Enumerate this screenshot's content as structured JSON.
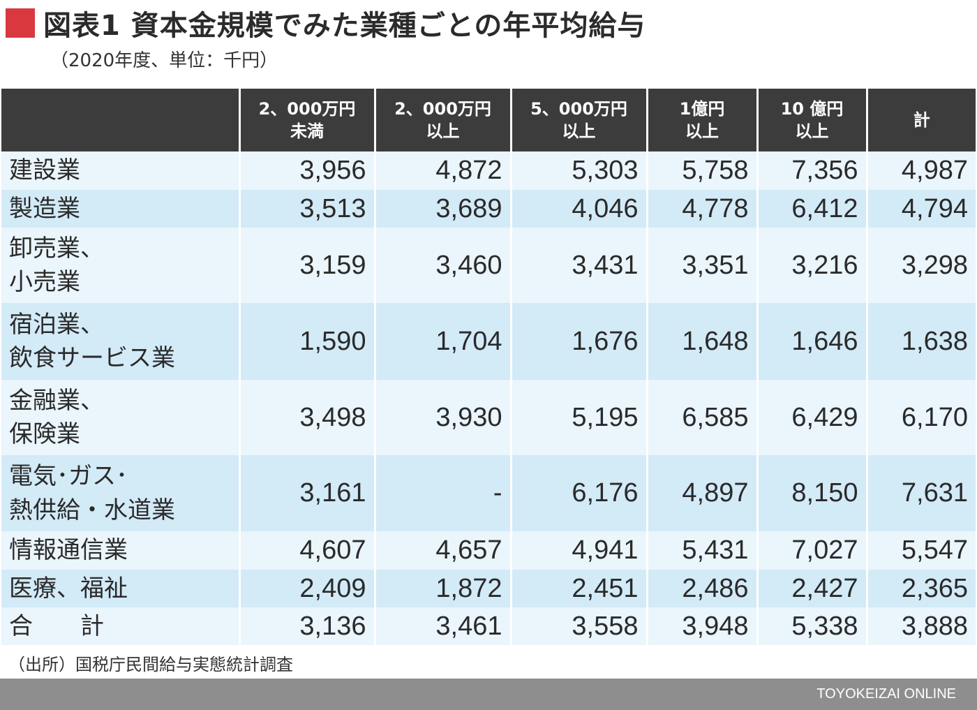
{
  "title": "図表1 資本金規模でみた業種ごとの年平均給与",
  "subtitle": "（2020年度、単位：千円）",
  "colors": {
    "title_marker": "#d9383f",
    "header_bg": "#3c3c3c",
    "row_light": "#eaf5fc",
    "row_dark": "#d3eaf7",
    "footer_bg": "#8e8e8e"
  },
  "chart_data": {
    "type": "table",
    "title": "図表1 資本金規模でみた業種ごとの年平均給与",
    "subtitle": "（2020年度、単位：千円）",
    "columns": [
      {
        "line1": "",
        "line2": ""
      },
      {
        "line1": "2、000万円",
        "line2": "未満"
      },
      {
        "line1": "2、000万円",
        "line2": "以上"
      },
      {
        "line1": "5、000万円",
        "line2": "以上"
      },
      {
        "line1": "1億円",
        "line2": "以上"
      },
      {
        "line1": "10 億円",
        "line2": "以上"
      },
      {
        "line1": "計",
        "line2": ""
      }
    ],
    "rows": [
      {
        "label": [
          "建設業"
        ],
        "values": [
          "3,956",
          "4,872",
          "5,303",
          "5,758",
          "7,356",
          "4,987"
        ]
      },
      {
        "label": [
          "製造業"
        ],
        "values": [
          "3,513",
          "3,689",
          "4,046",
          "4,778",
          "6,412",
          "4,794"
        ]
      },
      {
        "label": [
          "卸売業、",
          "小売業"
        ],
        "values": [
          "3,159",
          "3,460",
          "3,431",
          "3,351",
          "3,216",
          "3,298"
        ]
      },
      {
        "label": [
          "宿泊業、",
          "飲食サービス業"
        ],
        "values": [
          "1,590",
          "1,704",
          "1,676",
          "1,648",
          "1,646",
          "1,638"
        ]
      },
      {
        "label": [
          "金融業、",
          "保険業"
        ],
        "values": [
          "3,498",
          "3,930",
          "5,195",
          "6,585",
          "6,429",
          "6,170"
        ]
      },
      {
        "label": [
          "電気･ガス･",
          "熱供給・水道業"
        ],
        "values": [
          "3,161",
          "-",
          "6,176",
          "4,897",
          "8,150",
          "7,631"
        ]
      },
      {
        "label": [
          "情報通信業"
        ],
        "values": [
          "4,607",
          "4,657",
          "4,941",
          "5,431",
          "7,027",
          "5,547"
        ]
      },
      {
        "label": [
          "医療、福祉"
        ],
        "values": [
          "2,409",
          "1,872",
          "2,451",
          "2,486",
          "2,427",
          "2,365"
        ]
      },
      {
        "label": [
          "合　　計"
        ],
        "values": [
          "3,136",
          "3,461",
          "3,558",
          "3,948",
          "5,338",
          "3,888"
        ]
      }
    ]
  },
  "source": "（出所）国税庁民間給与実態統計調査",
  "footer": {
    "brand": "TOYOKEIZAI ONLINE"
  }
}
